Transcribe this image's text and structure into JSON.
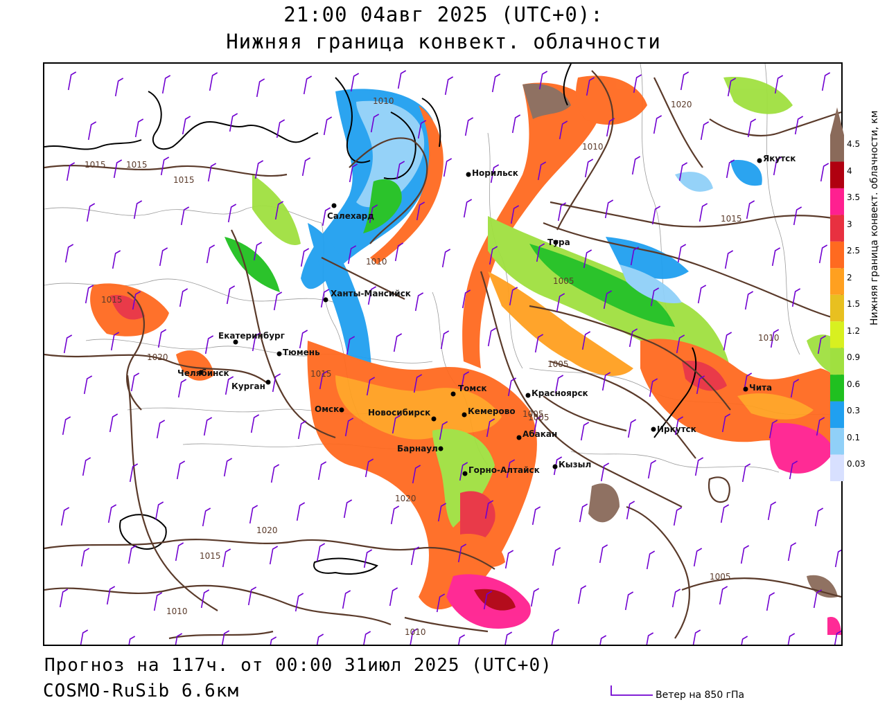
{
  "header": {
    "title_line1": "21:00 04авг 2025 (UTC+0):",
    "title_line2": "Нижняя граница конвект. облачности"
  },
  "footer": {
    "forecast": "Прогноз на 117ч. от 00:00 31июл 2025 (UTC+0)",
    "model": "COSMO-RuSib 6.6км",
    "wind_legend": "Ветер на 850 гПа"
  },
  "colorbar": {
    "title": "Нижняя граница конвект. облачности, км",
    "ticks": [
      "4.5",
      "4",
      "3.5",
      "3",
      "2.5",
      "2",
      "1.5",
      "1.2",
      "0.9",
      "0.6",
      "0.3",
      "0.1",
      "0.03"
    ],
    "colors": [
      "#8a6a5a",
      "#b00010",
      "#ff2090",
      "#e83040",
      "#ff6a20",
      "#ffa020",
      "#e8c020",
      "#d8f020",
      "#a0e040",
      "#20c020",
      "#20a0f0",
      "#90d0f8",
      "#d8e0ff"
    ]
  },
  "cities": [
    {
      "name": "Салехард"
    },
    {
      "name": "Норильск"
    },
    {
      "name": "Якутск"
    },
    {
      "name": "Тура"
    },
    {
      "name": "Ханты-Мансийск"
    },
    {
      "name": "Екатеринбург"
    },
    {
      "name": "Тюмень"
    },
    {
      "name": "Челябинск"
    },
    {
      "name": "Курган"
    },
    {
      "name": "Омск"
    },
    {
      "name": "Новосибирск"
    },
    {
      "name": "Томск"
    },
    {
      "name": "Кемерово"
    },
    {
      "name": "Красноярск"
    },
    {
      "name": "Барнаул"
    },
    {
      "name": "Абакан"
    },
    {
      "name": "Горно-Алтайск"
    },
    {
      "name": "Кызыл"
    },
    {
      "name": "Иркутск"
    },
    {
      "name": "Чита"
    }
  ],
  "isobar_labels": [
    "1010",
    "1015",
    "1015",
    "1015",
    "1015",
    "1020",
    "1020",
    "1020",
    "1020",
    "1015",
    "1010",
    "1005",
    "1005",
    "1005",
    "1010",
    "1015",
    "1005",
    "1010",
    "1010",
    "1015",
    "1005",
    "1010"
  ],
  "legend_colors": {
    "isobar": "#5a3a2a",
    "coastline": "#000000",
    "wind_barb": "#7000d0",
    "borders": "#9a9a9a"
  }
}
